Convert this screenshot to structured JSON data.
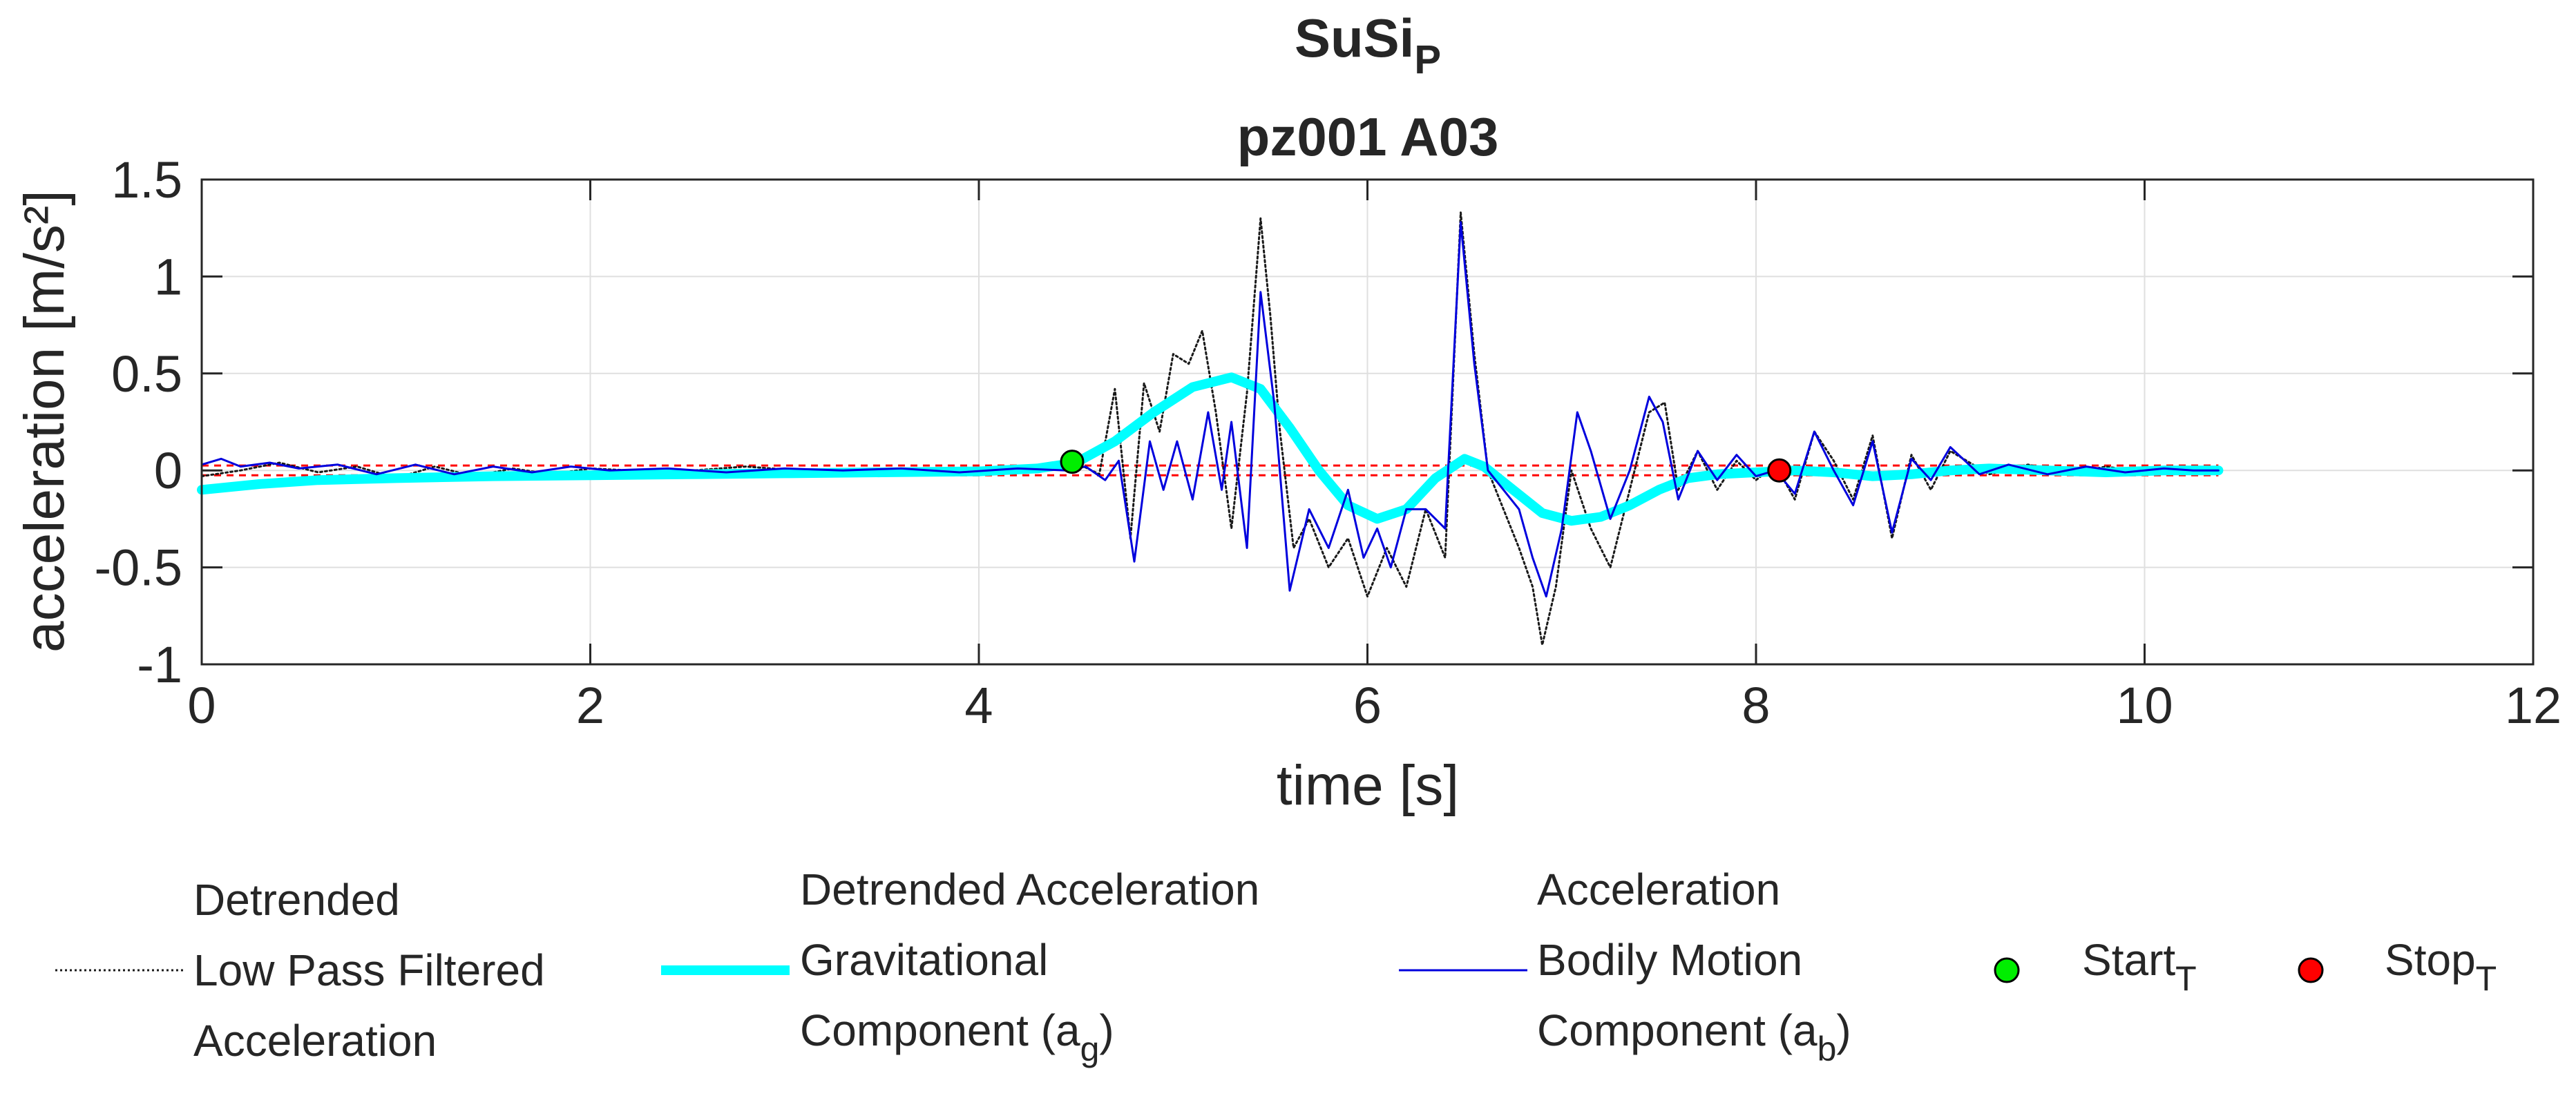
{
  "chart_data": {
    "type": "line",
    "title": "SuSi",
    "title_subscript": "P",
    "subtitle": "pz001 A03",
    "xlabel": "time [s]",
    "ylabel": "acceleration [m/s²]",
    "xlim": [
      0,
      12
    ],
    "ylim": [
      -1,
      1.5
    ],
    "xticks": [
      0,
      2,
      4,
      6,
      8,
      10,
      12
    ],
    "xtick_labels": [
      "0",
      "2",
      "4",
      "6",
      "8",
      "10",
      "12"
    ],
    "yticks": [
      -1,
      -0.5,
      0,
      0.5,
      1,
      1.5
    ],
    "ytick_labels": [
      "-1",
      "-0.5",
      "0",
      "0.5",
      "1",
      "1.5"
    ],
    "grid": true,
    "thresholds": [
      0.025,
      -0.025
    ],
    "series": [
      {
        "name": "Detrended Low Pass Filtered Acceleration",
        "color": "#1a1a1a",
        "style": "dotted",
        "x": [
          0,
          0.2,
          0.4,
          0.6,
          0.8,
          1.0,
          1.2,
          1.4,
          1.6,
          1.8,
          2.0,
          2.4,
          2.8,
          3.2,
          3.6,
          4.0,
          4.3,
          4.5,
          4.62,
          4.7,
          4.78,
          4.85,
          4.93,
          5.0,
          5.08,
          5.15,
          5.22,
          5.3,
          5.38,
          5.45,
          5.5,
          5.55,
          5.62,
          5.7,
          5.8,
          5.9,
          6.0,
          6.1,
          6.2,
          6.3,
          6.4,
          6.48,
          6.55,
          6.62,
          6.7,
          6.78,
          6.85,
          6.9,
          6.97,
          7.05,
          7.15,
          7.25,
          7.35,
          7.45,
          7.53,
          7.6,
          7.7,
          7.8,
          7.9,
          8.0,
          8.1,
          8.2,
          8.3,
          8.4,
          8.5,
          8.6,
          8.7,
          8.8,
          8.9,
          9.0,
          9.2,
          9.4,
          9.6,
          9.8,
          10.0,
          10.2,
          10.38
        ],
        "y": [
          -0.03,
          0.0,
          0.04,
          -0.01,
          0.02,
          -0.04,
          0.02,
          -0.03,
          0.01,
          -0.02,
          0.01,
          -0.01,
          0.02,
          -0.01,
          0.01,
          -0.01,
          0.02,
          0.04,
          -0.02,
          0.42,
          -0.35,
          0.45,
          0.2,
          0.6,
          0.55,
          0.72,
          0.3,
          -0.3,
          0.4,
          1.3,
          0.8,
          0.2,
          -0.4,
          -0.25,
          -0.5,
          -0.35,
          -0.65,
          -0.4,
          -0.6,
          -0.2,
          -0.45,
          1.33,
          0.6,
          0.0,
          -0.2,
          -0.4,
          -0.6,
          -0.9,
          -0.6,
          0.0,
          -0.3,
          -0.5,
          -0.1,
          0.3,
          0.35,
          -0.1,
          0.1,
          -0.1,
          0.05,
          -0.05,
          0.03,
          -0.15,
          0.2,
          0.05,
          -0.15,
          0.18,
          -0.35,
          0.08,
          -0.1,
          0.1,
          -0.02,
          0.03,
          -0.02,
          0.02,
          -0.01,
          0.01,
          0.0
        ]
      },
      {
        "name": "Detrended Acceleration Gravitational Component (a_g)",
        "color": "#00ffff",
        "style": "thick",
        "x": [
          0,
          0.3,
          0.6,
          1.0,
          1.5,
          2.0,
          2.5,
          3.0,
          3.5,
          4.0,
          4.3,
          4.5,
          4.7,
          4.9,
          5.1,
          5.3,
          5.45,
          5.6,
          5.75,
          5.9,
          6.05,
          6.2,
          6.35,
          6.5,
          6.6,
          6.75,
          6.9,
          7.05,
          7.2,
          7.35,
          7.5,
          7.65,
          7.8,
          8.0,
          8.2,
          8.4,
          8.6,
          8.8,
          9.0,
          9.2,
          9.5,
          9.8,
          10.1,
          10.38
        ],
        "y": [
          -0.1,
          -0.07,
          -0.05,
          -0.04,
          -0.03,
          -0.025,
          -0.02,
          -0.015,
          -0.01,
          -0.005,
          0.01,
          0.04,
          0.15,
          0.3,
          0.43,
          0.48,
          0.42,
          0.22,
          0.0,
          -0.18,
          -0.25,
          -0.2,
          -0.04,
          0.06,
          0.02,
          -0.1,
          -0.22,
          -0.26,
          -0.24,
          -0.18,
          -0.1,
          -0.04,
          -0.02,
          -0.01,
          0.0,
          -0.01,
          -0.03,
          -0.02,
          0.0,
          0.01,
          0.0,
          -0.01,
          0.0,
          0.0
        ]
      },
      {
        "name": "Acceleration Bodily Motion Component (a_b)",
        "color": "#0000dd",
        "style": "solid",
        "x": [
          0,
          0.1,
          0.2,
          0.35,
          0.5,
          0.7,
          0.9,
          1.1,
          1.3,
          1.5,
          1.7,
          1.9,
          2.1,
          2.4,
          2.7,
          3.0,
          3.3,
          3.6,
          3.9,
          4.2,
          4.45,
          4.55,
          4.65,
          4.72,
          4.8,
          4.88,
          4.95,
          5.02,
          5.1,
          5.18,
          5.25,
          5.3,
          5.38,
          5.45,
          5.52,
          5.6,
          5.7,
          5.8,
          5.9,
          5.98,
          6.05,
          6.12,
          6.2,
          6.3,
          6.4,
          6.48,
          6.55,
          6.62,
          6.7,
          6.78,
          6.85,
          6.92,
          7.0,
          7.08,
          7.15,
          7.25,
          7.35,
          7.45,
          7.52,
          7.6,
          7.7,
          7.8,
          7.9,
          8.0,
          8.1,
          8.2,
          8.3,
          8.4,
          8.5,
          8.6,
          8.7,
          8.8,
          8.9,
          9.0,
          9.15,
          9.3,
          9.5,
          9.7,
          9.9,
          10.1,
          10.25,
          10.38
        ],
        "y": [
          0.03,
          0.06,
          0.02,
          0.04,
          0.01,
          0.03,
          -0.02,
          0.03,
          -0.02,
          0.02,
          -0.01,
          0.02,
          0.0,
          0.01,
          -0.01,
          0.01,
          0.0,
          0.01,
          -0.01,
          0.01,
          0.0,
          0.02,
          -0.05,
          0.05,
          -0.47,
          0.15,
          -0.1,
          0.15,
          -0.15,
          0.3,
          -0.1,
          0.25,
          -0.4,
          0.92,
          0.35,
          -0.62,
          -0.2,
          -0.4,
          -0.1,
          -0.45,
          -0.3,
          -0.5,
          -0.2,
          -0.2,
          -0.3,
          1.28,
          0.55,
          0.0,
          -0.1,
          -0.2,
          -0.45,
          -0.65,
          -0.3,
          0.3,
          0.1,
          -0.25,
          0.0,
          0.38,
          0.25,
          -0.15,
          0.1,
          -0.05,
          0.08,
          -0.03,
          0.0,
          -0.12,
          0.2,
          0.0,
          -0.18,
          0.15,
          -0.32,
          0.06,
          -0.05,
          0.12,
          -0.02,
          0.03,
          -0.02,
          0.02,
          -0.01,
          0.01,
          0.0,
          0.0
        ]
      }
    ],
    "markers": [
      {
        "name": "Start",
        "subscript": "T",
        "x": 4.48,
        "y": 0.045,
        "color": "#00ee00"
      },
      {
        "name": "Stop",
        "subscript": "T",
        "x": 8.12,
        "y": 0.0,
        "color": "#ff0000"
      }
    ],
    "legend": {
      "placement": "bottom",
      "entries": [
        {
          "lines": [
            "Detrended",
            "Low Pass Filtered",
            "Acceleration"
          ]
        },
        {
          "lines": [
            "Detrended Acceleration",
            "Gravitational",
            "Component (a"
          ],
          "subscript": "g",
          "suffix": ")"
        },
        {
          "lines": [
            "Acceleration",
            "Bodily Motion",
            "Component (a"
          ],
          "subscript": "b",
          "suffix": ")"
        },
        {
          "lines": [
            "Start"
          ],
          "subscript": "T"
        },
        {
          "lines": [
            "Stop"
          ],
          "subscript": "T"
        }
      ]
    }
  }
}
